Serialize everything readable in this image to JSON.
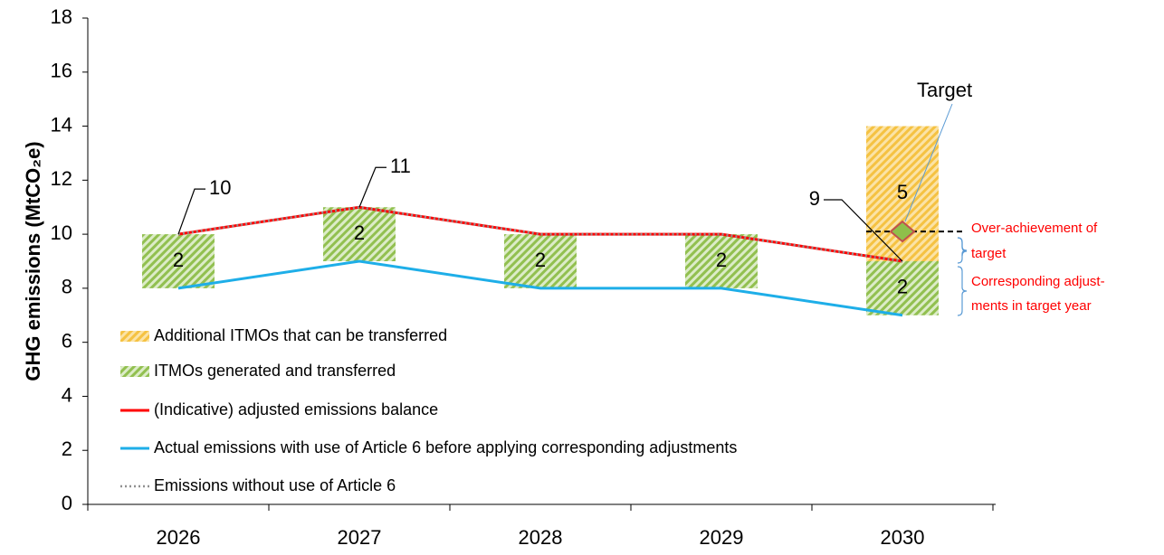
{
  "chart_data": {
    "type": "combo",
    "y_label": "GHG emissions (MtCO₂e)",
    "categories": [
      "2026",
      "2027",
      "2028",
      "2029",
      "2030"
    ],
    "ylim": [
      0,
      18
    ],
    "yticks": [
      0,
      2,
      4,
      6,
      8,
      10,
      12,
      14,
      16,
      18
    ],
    "legend": "lower left",
    "series": [
      {
        "name": "Additional ITMOs that can be transferred",
        "mark": "bar",
        "color": "#f5c242",
        "values": [
          null,
          null,
          null,
          null,
          5
        ]
      },
      {
        "name": "ITMOs generated and transferred",
        "mark": "bar",
        "color": "#92c050",
        "values": [
          2,
          2,
          2,
          2,
          2
        ]
      },
      {
        "name": "(Indicative) adjusted emissions balance",
        "mark": "line",
        "color": "#ff0000",
        "values": [
          10,
          11,
          10,
          10,
          9
        ]
      },
      {
        "name": "Actual emissions with use of Article 6 before applying corresponding adjustments",
        "mark": "line",
        "color": "#1eaee8",
        "stack_base": true,
        "values": [
          8,
          9,
          8,
          8,
          7
        ]
      },
      {
        "name": "Emissions without use of Article 6",
        "mark": "line",
        "color": "#909090",
        "style": "dotted",
        "values": [
          10,
          11,
          10,
          10,
          9
        ]
      }
    ],
    "target": {
      "label": "Target",
      "value": 10.1,
      "color": "#8fbf4a"
    },
    "annotations": [
      [
        "Over-achievement of",
        "target"
      ],
      [
        "Corresponding adjust-",
        "ments in target year"
      ]
    ]
  }
}
